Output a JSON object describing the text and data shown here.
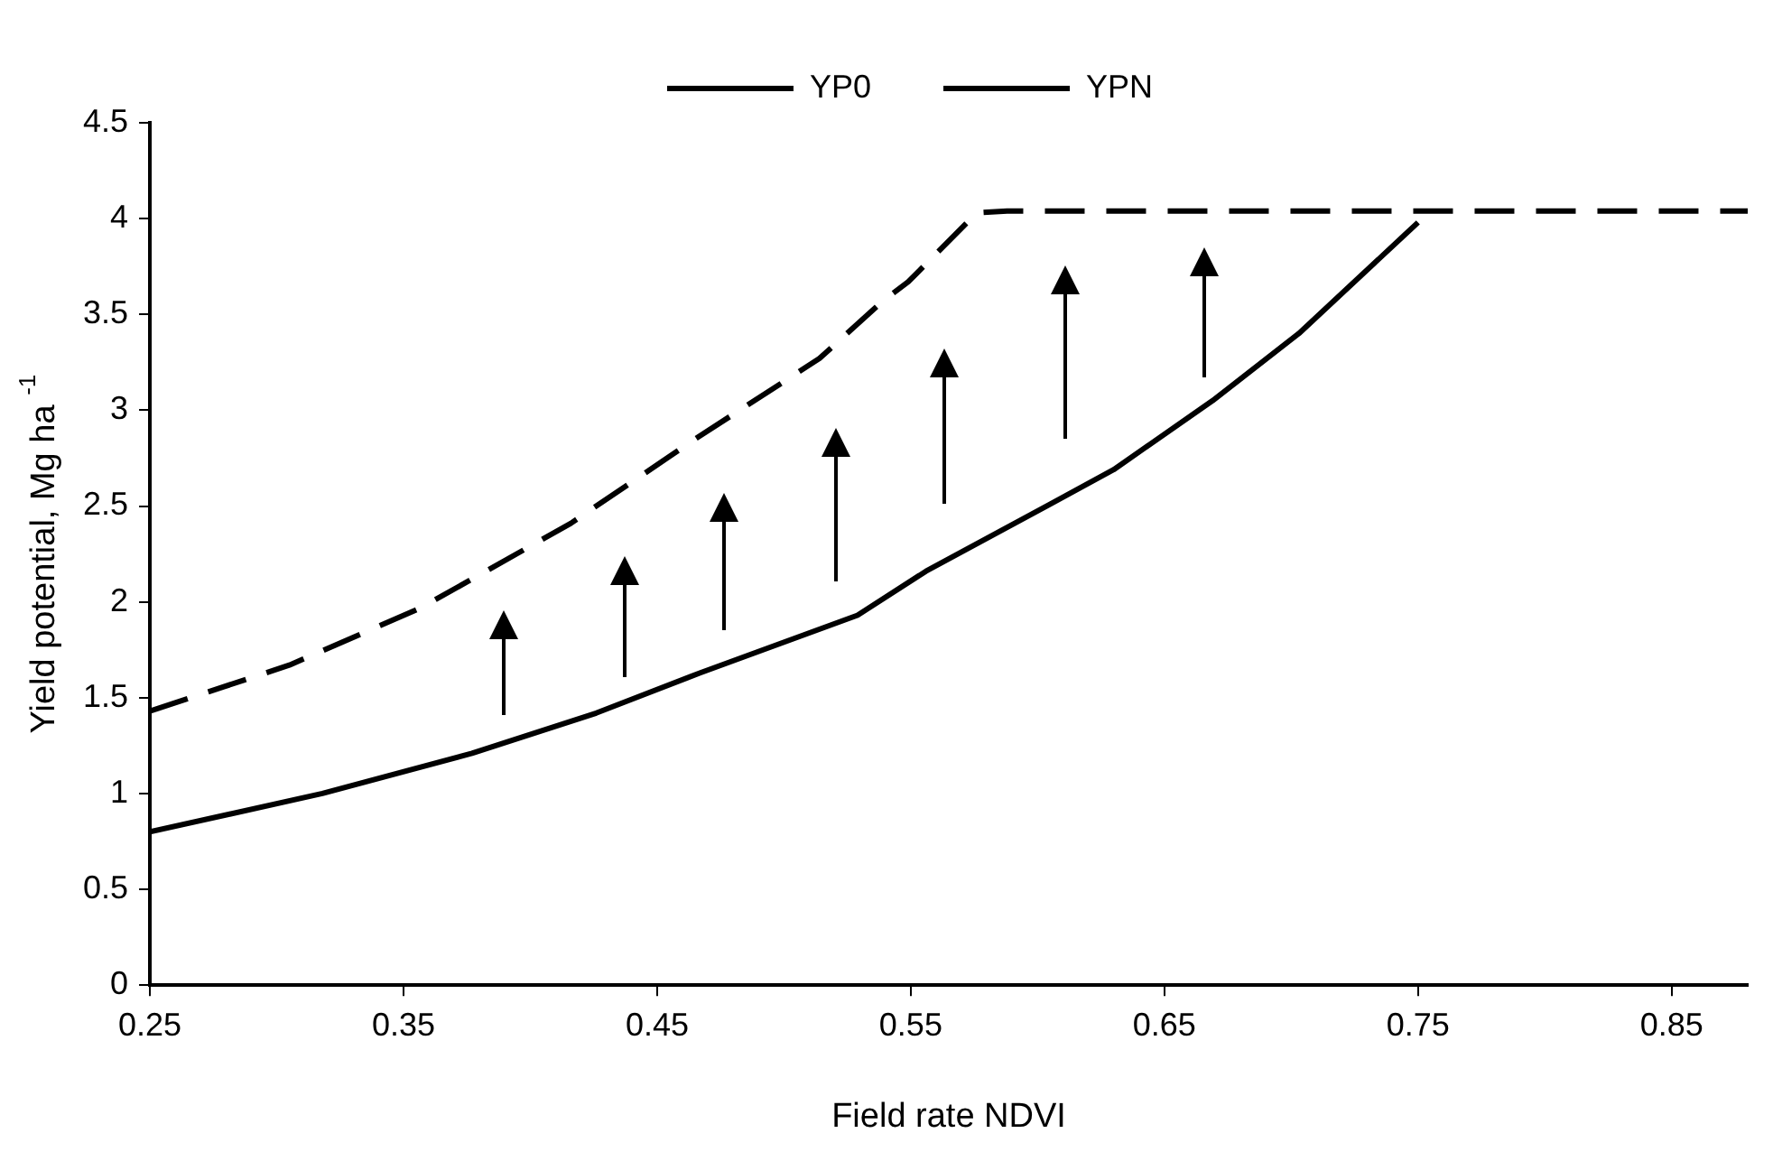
{
  "chart_data": {
    "type": "line",
    "xlabel": "Field rate NDVI",
    "ylabel": "Yield potential, Mg ha $^{-1}$",
    "xlim": [
      0.25,
      0.88
    ],
    "xticks": [
      0.25,
      0.35,
      0.45,
      0.55,
      0.65,
      0.75,
      0.85
    ],
    "ylim": [
      0,
      4.5
    ],
    "yticks": [
      0,
      0.5,
      1,
      1.5,
      2,
      2.5,
      3,
      3.5,
      4,
      4.5
    ],
    "grid": false,
    "legend": "top",
    "marker": "none",
    "series": [
      {
        "name": "YP0",
        "color": "#000000",
        "line_style": "solid",
        "x": [
          0.25,
          0.318,
          0.377,
          0.426,
          0.467,
          0.529,
          0.556,
          0.605,
          0.63,
          0.669,
          0.703,
          0.75
        ],
        "values": [
          0.8,
          1.0,
          1.21,
          1.42,
          1.63,
          1.93,
          2.16,
          2.51,
          2.69,
          3.05,
          3.4,
          3.98
        ]
      },
      {
        "name": "YPN",
        "color": "#000000",
        "line_style": "dashed",
        "x": [
          0.25,
          0.305,
          0.357,
          0.416,
          0.465,
          0.514,
          0.539,
          0.549,
          0.576,
          0.588,
          0.88
        ],
        "values": [
          1.43,
          1.67,
          1.97,
          2.41,
          2.85,
          3.27,
          3.57,
          3.67,
          4.03,
          4.04,
          4.04
        ]
      }
    ]
  }
}
